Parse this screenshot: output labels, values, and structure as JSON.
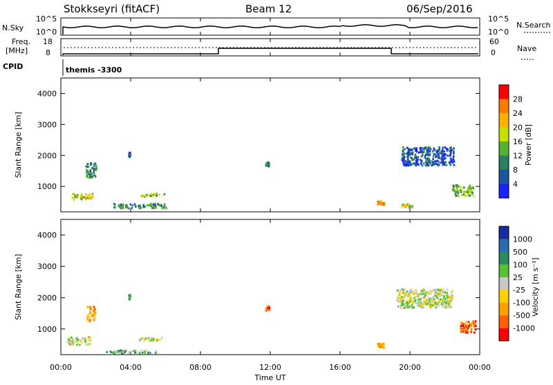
{
  "header": {
    "station": "Stokkseyri (fitACF)",
    "beam": "Beam 12",
    "date": "06/Sep/2016"
  },
  "top_panels": {
    "nsky_label": "N.Sky",
    "nsky_ticks": [
      "10^5",
      "10^0"
    ],
    "nsearch_label": "N.Search",
    "nsearch_ticks": [
      "10^5",
      "10^0"
    ],
    "freq_label_line1": "Freq.",
    "freq_label_line2": "[MHz]",
    "freq_ticks": [
      "18",
      "8"
    ],
    "nave_label": "Nave",
    "nave_ticks": [
      "60",
      "0"
    ],
    "cpid_label": "CPID",
    "cpid_value": "themis -3300"
  },
  "chart_data": [
    {
      "type": "heatmap",
      "title": "",
      "xlabel": "Time UT",
      "ylabel": "Slant Range [km]",
      "x_ticks": [
        "00:00",
        "04:00",
        "08:00",
        "12:00",
        "16:00",
        "20:00",
        "00:00"
      ],
      "y_ticks": [
        "1000",
        "2000",
        "3000",
        "4000"
      ],
      "colorbar_label": "Power [dB]",
      "colorbar_ticks": [
        "28",
        "24",
        "20",
        "16",
        "12",
        "8",
        "4"
      ],
      "colors": [
        "#ff0000",
        "#ff7a00",
        "#ffb000",
        "#c8dd00",
        "#58b030",
        "#2a8060",
        "#1a55a0",
        "#1a22ff"
      ],
      "blobs": [
        {
          "t": 1.2,
          "r": 700,
          "dt": 1.2,
          "dr": 200,
          "lvl": 3
        },
        {
          "t": 1.7,
          "r": 1550,
          "dt": 0.6,
          "dr": 500,
          "lvl": 5
        },
        {
          "t": 3.9,
          "r": 2050,
          "dt": 0.1,
          "dr": 150,
          "lvl": 6
        },
        {
          "t": 5.2,
          "r": 750,
          "dt": 1.4,
          "dr": 100,
          "lvl": 4
        },
        {
          "t": 4.5,
          "r": 400,
          "dt": 3.0,
          "dr": 150,
          "lvl": 5
        },
        {
          "t": 11.8,
          "r": 1750,
          "dt": 0.2,
          "dr": 150,
          "lvl": 5
        },
        {
          "t": 18.3,
          "r": 500,
          "dt": 0.4,
          "dr": 150,
          "lvl": 2
        },
        {
          "t": 19.8,
          "r": 400,
          "dt": 0.6,
          "dr": 120,
          "lvl": 3
        },
        {
          "t": 21.0,
          "r": 2000,
          "dt": 3.0,
          "dr": 600,
          "lvl": 6
        },
        {
          "t": 23.0,
          "r": 900,
          "dt": 1.2,
          "dr": 350,
          "lvl": 4
        }
      ]
    },
    {
      "type": "heatmap",
      "title": "",
      "xlabel": "Time UT",
      "ylabel": "Slant Range [km]",
      "x_ticks": [
        "00:00",
        "04:00",
        "08:00",
        "12:00",
        "16:00",
        "20:00",
        "00:00"
      ],
      "y_ticks": [
        "1000",
        "2000",
        "3000",
        "4000"
      ],
      "colorbar_label": "Velocity [m s⁻¹]",
      "colorbar_ticks": [
        "1000",
        "500",
        "100",
        "25",
        "-25",
        "-100",
        "-500",
        "-1000"
      ],
      "colors": [
        "#1a2aa0",
        "#2a6ab0",
        "#2a8a60",
        "#58c030",
        "#c8c8c8",
        "#ffd000",
        "#ffa000",
        "#ff6000",
        "#ff0000"
      ],
      "blobs": [
        {
          "t": 1.0,
          "r": 650,
          "dt": 1.3,
          "dr": 250,
          "lvl": 4
        },
        {
          "t": 1.7,
          "r": 1500,
          "dt": 0.5,
          "dr": 500,
          "lvl": 6
        },
        {
          "t": 3.9,
          "r": 2050,
          "dt": 0.1,
          "dr": 150,
          "lvl": 3
        },
        {
          "t": 5.0,
          "r": 700,
          "dt": 1.5,
          "dr": 100,
          "lvl": 4
        },
        {
          "t": 4.0,
          "r": 300,
          "dt": 3.0,
          "dr": 100,
          "lvl": 3
        },
        {
          "t": 11.8,
          "r": 1700,
          "dt": 0.2,
          "dr": 150,
          "lvl": 7
        },
        {
          "t": 18.3,
          "r": 500,
          "dt": 0.4,
          "dr": 150,
          "lvl": 6
        },
        {
          "t": 20.8,
          "r": 2000,
          "dt": 3.2,
          "dr": 600,
          "lvl": 4
        },
        {
          "t": 23.3,
          "r": 1100,
          "dt": 0.9,
          "dr": 400,
          "lvl": 7
        }
      ]
    }
  ]
}
